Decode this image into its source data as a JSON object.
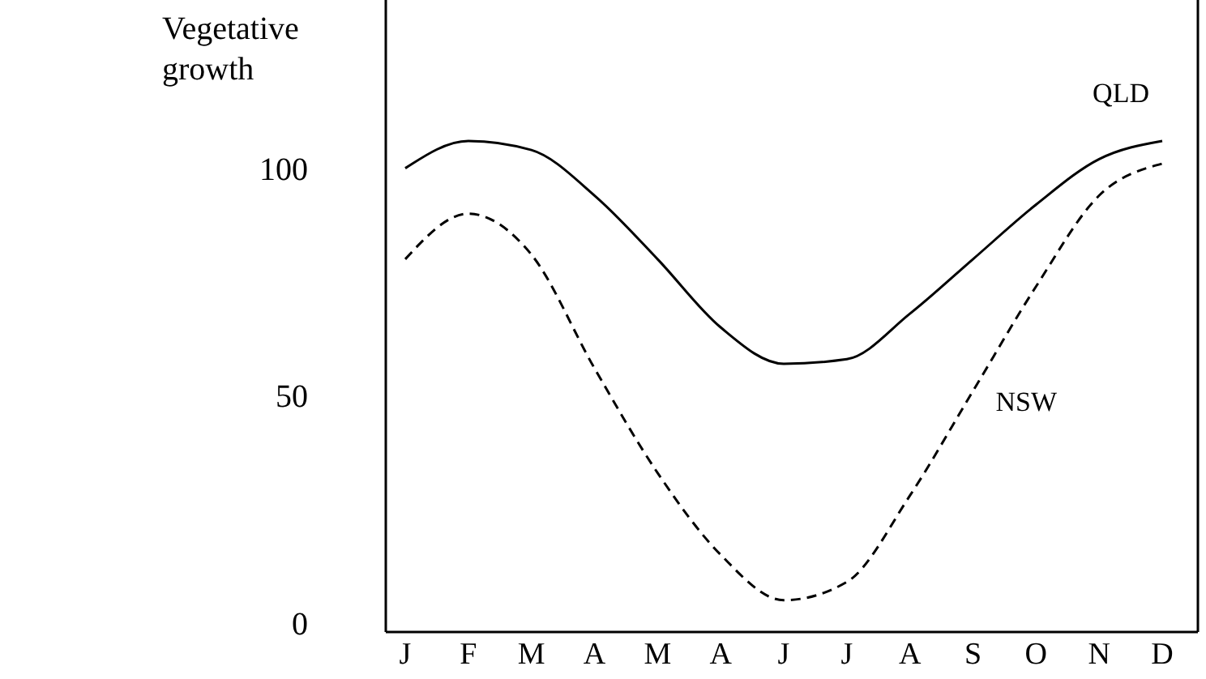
{
  "chart_data": {
    "type": "line",
    "ylabel": "Vegetative growth",
    "categories": [
      "J",
      "F",
      "M",
      "A",
      "M",
      "A",
      "J",
      "J",
      "A",
      "S",
      "O",
      "N",
      "D"
    ],
    "ylim": [
      -2,
      137
    ],
    "yticks": [
      0,
      50,
      100
    ],
    "marker": "none",
    "series": [
      {
        "name": "QLD",
        "color": "#000000",
        "line_style": "solid",
        "values": [
          100,
          106,
          104,
          94,
          80,
          65,
          57,
          58,
          68,
          80,
          92,
          102,
          106
        ]
      },
      {
        "name": "NSW",
        "color": "#000000",
        "line_style": "dashed",
        "values": [
          80,
          90,
          81,
          56,
          33,
          15,
          5,
          9,
          28,
          51,
          74,
          94,
          101
        ]
      }
    ]
  }
}
